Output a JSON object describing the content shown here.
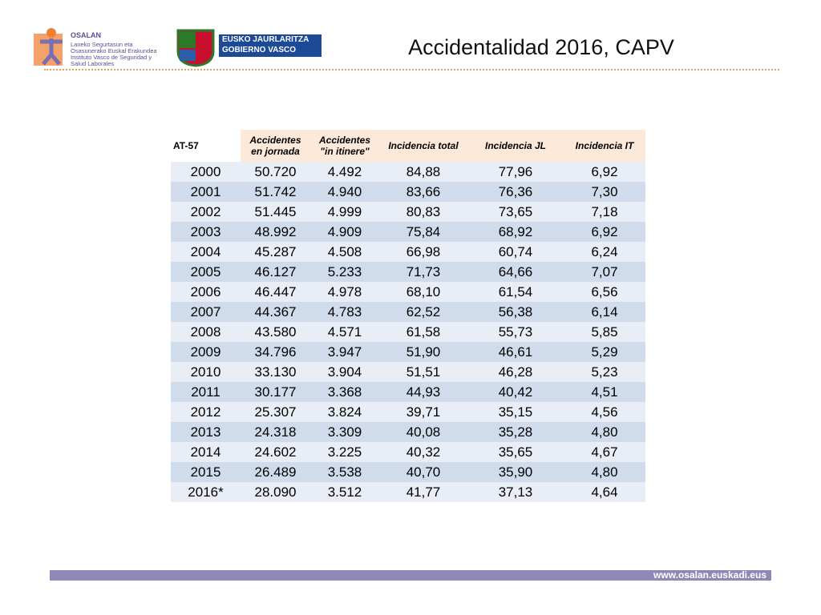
{
  "header": {
    "org": "OSALAN",
    "org_lines": [
      "Laneko Segurtasun eta",
      "Osasunerako Euskal Erakundea",
      "Instituto Vasco de Seguridad y",
      "Salud Laborales"
    ],
    "gov_lines": [
      "EUSKO JAURLARITZA",
      "GOBIERNO VASCO"
    ],
    "title": "Accidentalidad 2016, CAPV"
  },
  "table": {
    "columns": [
      [
        "AT-57"
      ],
      [
        "Accidentes",
        "en jornada"
      ],
      [
        "Accidentes",
        "\"in itinere\""
      ],
      [
        "Incidencia total"
      ],
      [
        "Incidencia JL"
      ],
      [
        "Incidencia IT"
      ]
    ],
    "rows": [
      [
        "2000",
        "50.720",
        "4.492",
        "84,88",
        "77,96",
        "6,92"
      ],
      [
        "2001",
        "51.742",
        "4.940",
        "83,66",
        "76,36",
        "7,30"
      ],
      [
        "2002",
        "51.445",
        "4.999",
        "80,83",
        "73,65",
        "7,18"
      ],
      [
        "2003",
        "48.992",
        "4.909",
        "75,84",
        "68,92",
        "6,92"
      ],
      [
        "2004",
        "45.287",
        "4.508",
        "66,98",
        "60,74",
        "6,24"
      ],
      [
        "2005",
        "46.127",
        "5.233",
        "71,73",
        "64,66",
        "7,07"
      ],
      [
        "2006",
        "46.447",
        "4.978",
        "68,10",
        "61,54",
        "6,56"
      ],
      [
        "2007",
        "44.367",
        "4.783",
        "62,52",
        "56,38",
        "6,14"
      ],
      [
        "2008",
        "43.580",
        "4.571",
        "61,58",
        "55,73",
        "5,85"
      ],
      [
        "2009",
        "34.796",
        "3.947",
        "51,90",
        "46,61",
        "5,29"
      ],
      [
        "2010",
        "33.130",
        "3.904",
        "51,51",
        "46,28",
        "5,23"
      ],
      [
        "2011",
        "30.177",
        "3.368",
        "44,93",
        "40,42",
        "4,51"
      ],
      [
        "2012",
        "25.307",
        "3.824",
        "39,71",
        "35,15",
        "4,56"
      ],
      [
        "2013",
        "24.318",
        "3.309",
        "40,08",
        "35,28",
        "4,80"
      ],
      [
        "2014",
        "24.602",
        "3.225",
        "40,32",
        "35,65",
        "4,67"
      ],
      [
        "2015",
        "26.489",
        "3.538",
        "40,70",
        "35,90",
        "4,80"
      ],
      [
        "2016*",
        "28.090",
        "3.512",
        "41,77",
        "37,13",
        "4,64"
      ]
    ]
  },
  "footer": {
    "url": "www.osalan.euskadi.eus"
  }
}
